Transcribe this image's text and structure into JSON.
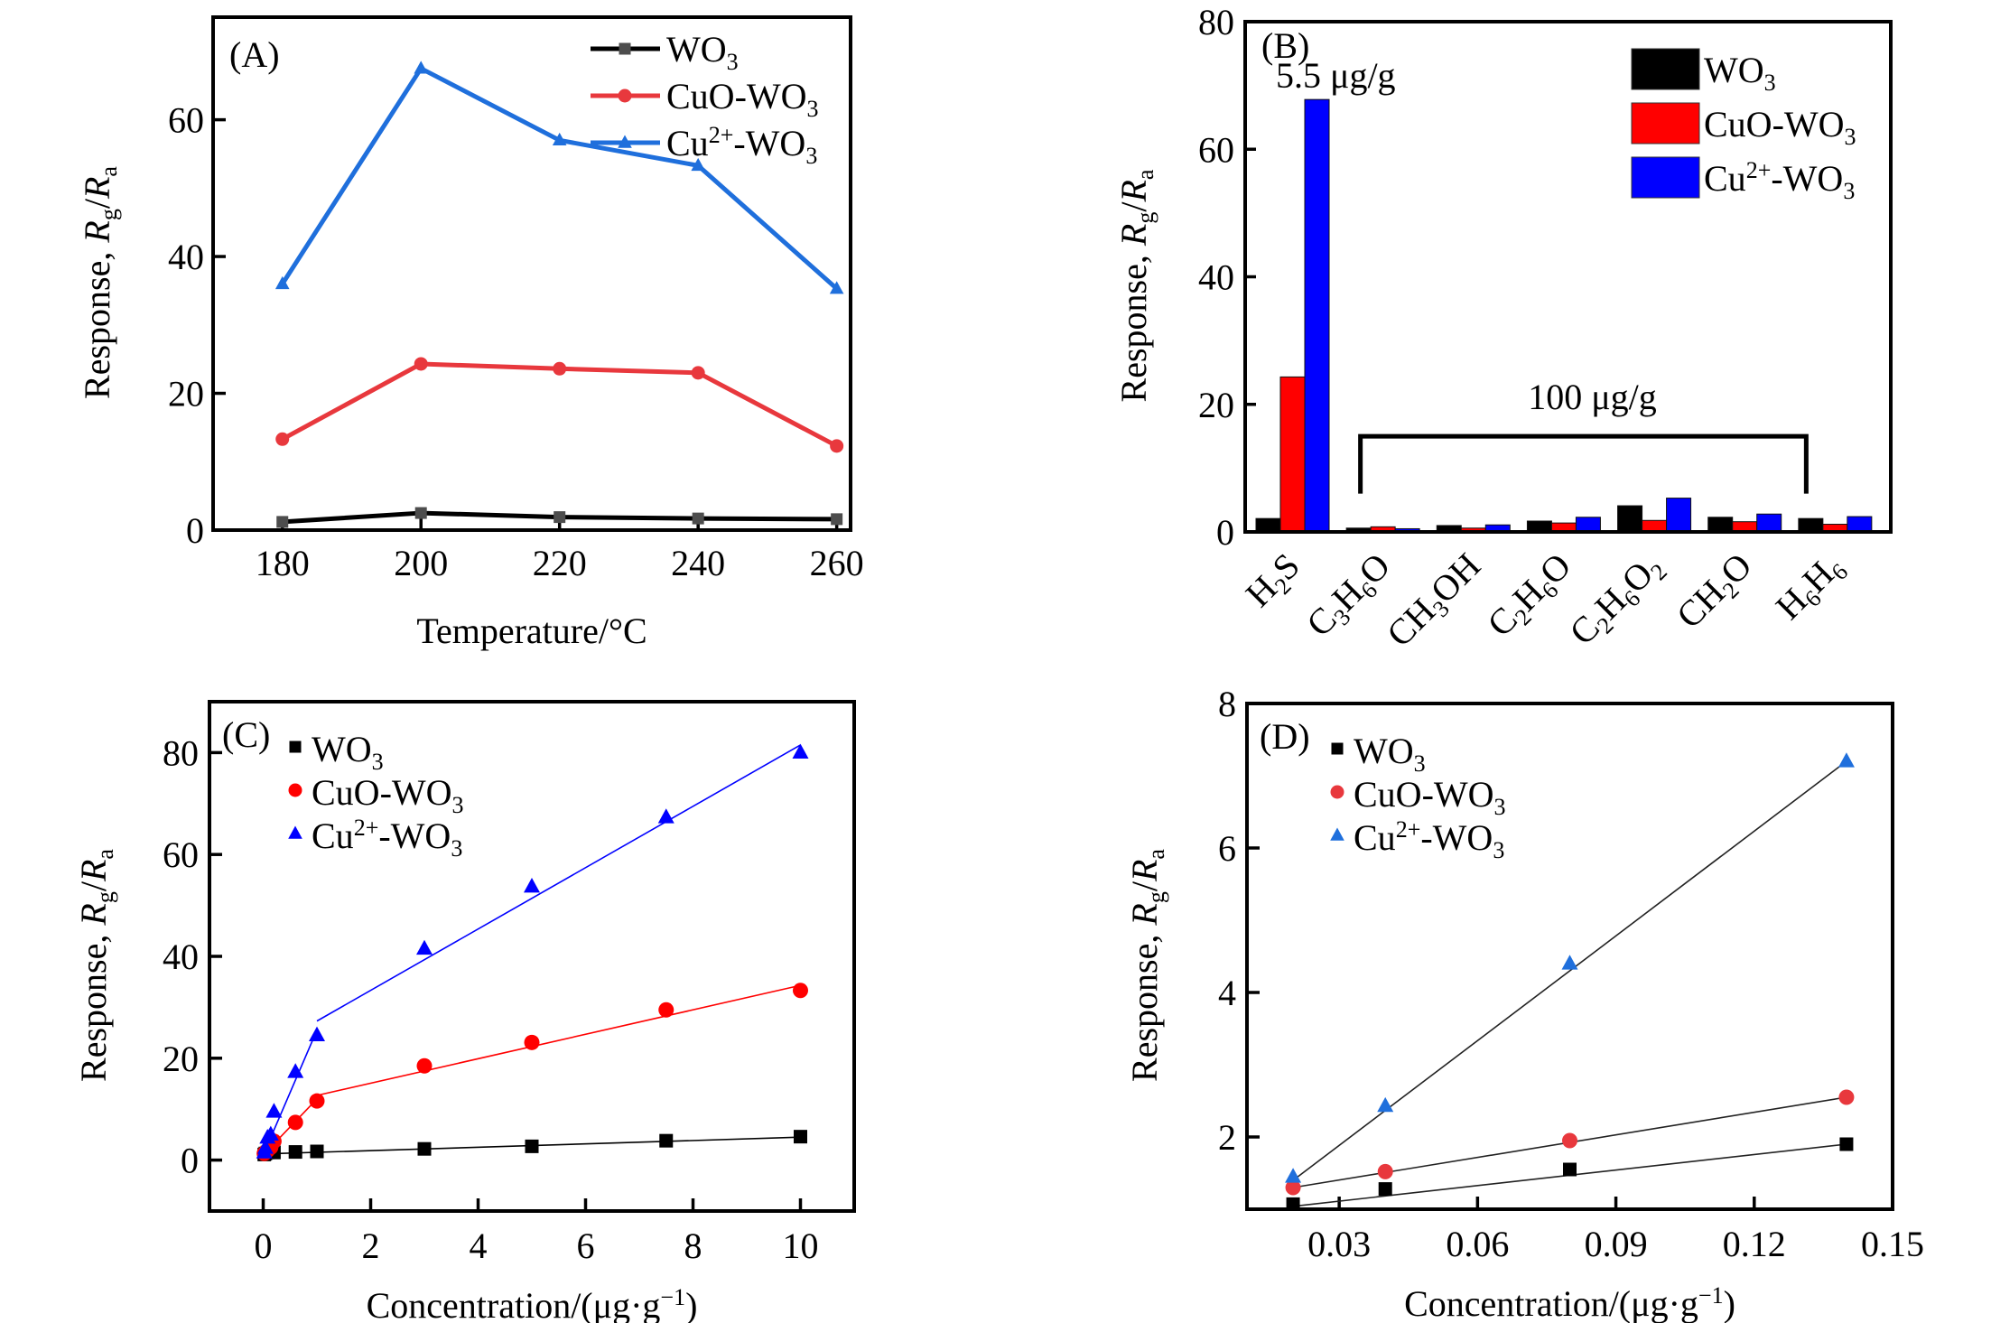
{
  "figure": {
    "panels": [
      "A",
      "B",
      "C",
      "D"
    ]
  },
  "chart_data": [
    {
      "id": "A",
      "type": "line",
      "panel_label": "(A)",
      "title": "",
      "xlabel": "Temperature/°C",
      "ylabel_parts": {
        "prefix": "Response, ",
        "r1": "R",
        "s1": "g",
        "slash": "/",
        "r2": "R",
        "s2": "a"
      },
      "xlim": [
        170,
        262
      ],
      "ylim": [
        0,
        75
      ],
      "xticks": [
        180,
        200,
        220,
        240,
        260
      ],
      "yticks": [
        0,
        20,
        40,
        60
      ],
      "grid": false,
      "legend_position": "top-right",
      "x": [
        180,
        200,
        220,
        240,
        260
      ],
      "series": [
        {
          "name": "WO3",
          "label_main": "WO",
          "label_sub": "3",
          "label_sup": "",
          "label_tail": "",
          "color": "#000000",
          "marker_color": "#4d4d4d",
          "marker": "square",
          "values": [
            1.2,
            2.5,
            1.9,
            1.7,
            1.6
          ]
        },
        {
          "name": "CuO-WO3",
          "label_main": "CuO-WO",
          "label_sub": "3",
          "label_sup": "",
          "label_tail": "",
          "color": "#e8383d",
          "marker_color": "#e8383d",
          "marker": "circle",
          "values": [
            13.3,
            24.3,
            23.6,
            23.0,
            12.3
          ]
        },
        {
          "name": "Cu2+-WO3",
          "label_main": "Cu",
          "label_sup": "2+",
          "label_tail": "-WO",
          "label_sub": "3",
          "color": "#1f6fdc",
          "marker_color": "#1f6fdc",
          "marker": "triangle",
          "values": [
            36.0,
            67.5,
            57.0,
            53.3,
            35.3
          ]
        }
      ]
    },
    {
      "id": "B",
      "type": "bar",
      "panel_label": "(B)",
      "title": "",
      "xlabel": "",
      "ylabel_parts": {
        "prefix": "Response, ",
        "r1": "R",
        "s1": "g",
        "slash": "/",
        "r2": "R",
        "s2": "a"
      },
      "ylim": [
        0,
        80
      ],
      "yticks": [
        0,
        20,
        40,
        60,
        80
      ],
      "grid": false,
      "legend_position": "top-right",
      "categories": [
        {
          "name": "H2S",
          "parts": [
            [
              "H",
              ""
            ],
            [
              "2",
              "sub"
            ],
            [
              "S",
              ""
            ]
          ]
        },
        {
          "name": "C3H6O",
          "parts": [
            [
              "C",
              ""
            ],
            [
              "3",
              "sub"
            ],
            [
              "H",
              ""
            ],
            [
              "6",
              "sub"
            ],
            [
              "O",
              ""
            ]
          ]
        },
        {
          "name": "CH3OH",
          "parts": [
            [
              "CH",
              ""
            ],
            [
              "3",
              "sub"
            ],
            [
              "OH",
              ""
            ]
          ]
        },
        {
          "name": "C2H6O",
          "parts": [
            [
              "C",
              ""
            ],
            [
              "2",
              "sub"
            ],
            [
              "H",
              ""
            ],
            [
              "6",
              "sub"
            ],
            [
              "O",
              ""
            ]
          ]
        },
        {
          "name": "C2H6O2",
          "parts": [
            [
              "C",
              ""
            ],
            [
              "2",
              "sub"
            ],
            [
              "H",
              ""
            ],
            [
              "6",
              "sub"
            ],
            [
              "O",
              ""
            ],
            [
              "2",
              "sub"
            ]
          ]
        },
        {
          "name": "CH2O",
          "parts": [
            [
              "CH",
              ""
            ],
            [
              "2",
              "sub"
            ],
            [
              "O",
              ""
            ]
          ]
        },
        {
          "name": "H6H6",
          "parts": [
            [
              "H",
              ""
            ],
            [
              "6",
              "sub"
            ],
            [
              "H",
              ""
            ],
            [
              "6",
              "sub"
            ]
          ]
        }
      ],
      "series": [
        {
          "name": "WO3",
          "label_main": "WO",
          "label_sub": "3",
          "label_sup": "",
          "label_tail": "",
          "color": "#000000",
          "values": [
            2.1,
            0.6,
            1.0,
            1.7,
            4.1,
            2.3,
            2.1
          ]
        },
        {
          "name": "CuO-WO3",
          "label_main": "CuO-WO",
          "label_sub": "3",
          "label_sup": "",
          "label_tail": "",
          "color": "#ff0000",
          "values": [
            24.3,
            0.8,
            0.6,
            1.4,
            1.8,
            1.6,
            1.2
          ]
        },
        {
          "name": "Cu2+-WO3",
          "label_main": "Cu",
          "label_sup": "2+",
          "label_tail": "-WO",
          "label_sub": "3",
          "color": "#0000ff",
          "values": [
            67.8,
            0.5,
            1.1,
            2.3,
            5.3,
            2.8,
            2.4
          ]
        }
      ],
      "annotations": [
        {
          "text": "5.5 μg/g",
          "category_index": 0
        },
        {
          "text": "100 μg/g",
          "from_category": 1,
          "to_category": 6,
          "bracket_y": 15
        }
      ]
    },
    {
      "id": "C",
      "type": "scatter",
      "panel_label": "(C)",
      "title": "",
      "xlabel_parts": {
        "main": "Concentration/(μg·g",
        "sup": "−1",
        "tail": ")"
      },
      "ylabel_parts": {
        "prefix": "Response, ",
        "r1": "R",
        "s1": "g",
        "slash": "/",
        "r2": "R",
        "s2": "a"
      },
      "xlim": [
        -1,
        11
      ],
      "ylim": [
        -10,
        90
      ],
      "xticks": [
        0,
        2,
        4,
        6,
        8,
        10
      ],
      "yticks": [
        0,
        20,
        40,
        60,
        80
      ],
      "grid": false,
      "legend_position": "top-left",
      "x": [
        0.02,
        0.04,
        0.08,
        0.14,
        0.2,
        0.6,
        1,
        3,
        5,
        7.5,
        10
      ],
      "series": [
        {
          "name": "WO3",
          "label_main": "WO",
          "label_sub": "3",
          "label_sup": "",
          "label_tail": "",
          "color": "#000000",
          "marker": "square",
          "values": [
            1.1,
            1.3,
            1.5,
            1.9,
            1.5,
            1.6,
            1.7,
            2.2,
            2.7,
            3.8,
            4.6
          ],
          "fits": [
            {
              "x": [
                0,
                10
              ],
              "y": [
                1.2,
                4.5
              ]
            }
          ]
        },
        {
          "name": "CuO-WO3",
          "label_main": "CuO-WO",
          "label_sub": "3",
          "label_sup": "",
          "label_tail": "",
          "color": "#ff0000",
          "marker": "circle",
          "values": [
            1.3,
            1.5,
            1.9,
            2.5,
            3.7,
            7.4,
            11.6,
            18.5,
            23.1,
            29.5,
            33.3
          ],
          "fits": [
            {
              "x": [
                0,
                1
              ],
              "y": [
                1.0,
                12.0
              ]
            },
            {
              "x": [
                1,
                10
              ],
              "y": [
                12.7,
                34.3
              ]
            }
          ]
        },
        {
          "name": "Cu2+-WO3",
          "label_main": "Cu",
          "label_sup": "2+",
          "label_tail": "-WO",
          "label_sub": "3",
          "color": "#0000ff",
          "marker": "triangle",
          "values": [
            1.5,
            2.4,
            4.4,
            5.0,
            9.5,
            17.3,
            24.5,
            41.5,
            53.7,
            67.3,
            80.0
          ],
          "fits": [
            {
              "x": [
                0,
                1
              ],
              "y": [
                1.0,
                25.5
              ]
            },
            {
              "x": [
                1,
                10
              ],
              "y": [
                27.3,
                81.5
              ]
            }
          ]
        }
      ]
    },
    {
      "id": "D",
      "type": "scatter",
      "panel_label": "(D)",
      "title": "",
      "xlabel_parts": {
        "main": "Concentration/(μg·g",
        "sup": "−1",
        "tail": ")"
      },
      "ylabel_parts": {
        "prefix": "Response, ",
        "r1": "R",
        "s1": "g",
        "slash": "/",
        "r2": "R",
        "s2": "a"
      },
      "xlim": [
        0.01,
        0.15
      ],
      "ylim": [
        1,
        8
      ],
      "xticks": [
        0.03,
        0.06,
        0.09,
        0.12,
        0.15
      ],
      "xtick_labels": [
        "0.03",
        "0.06",
        "0.09",
        "0.12",
        "0.15"
      ],
      "yticks": [
        2,
        4,
        6,
        8
      ],
      "grid": false,
      "legend_position": "top-left",
      "x": [
        0.02,
        0.04,
        0.08,
        0.14
      ],
      "series": [
        {
          "name": "WO3",
          "label_main": "WO",
          "label_sub": "3",
          "label_sup": "",
          "label_tail": "",
          "color": "#000000",
          "marker": "square",
          "values": [
            1.07,
            1.28,
            1.55,
            1.9
          ],
          "fits": [
            {
              "x": [
                0.02,
                0.14
              ],
              "y": [
                1.04,
                1.9
              ]
            }
          ]
        },
        {
          "name": "CuO-WO3",
          "label_main": "CuO-WO",
          "label_sub": "3",
          "label_sup": "",
          "label_tail": "",
          "color": "#e8383d",
          "marker": "circle",
          "values": [
            1.3,
            1.52,
            1.95,
            2.55
          ],
          "fits": [
            {
              "x": [
                0.02,
                0.14
              ],
              "y": [
                1.3,
                2.55
              ]
            }
          ]
        },
        {
          "name": "Cu2+-WO3",
          "label_main": "Cu",
          "label_sup": "2+",
          "label_tail": "-WO",
          "label_sub": "3",
          "color": "#1f6fdc",
          "marker": "triangle",
          "values": [
            1.45,
            2.43,
            4.4,
            7.2
          ],
          "fits": [
            {
              "x": [
                0.02,
                0.14
              ],
              "y": [
                1.4,
                7.2
              ]
            }
          ]
        }
      ]
    }
  ]
}
